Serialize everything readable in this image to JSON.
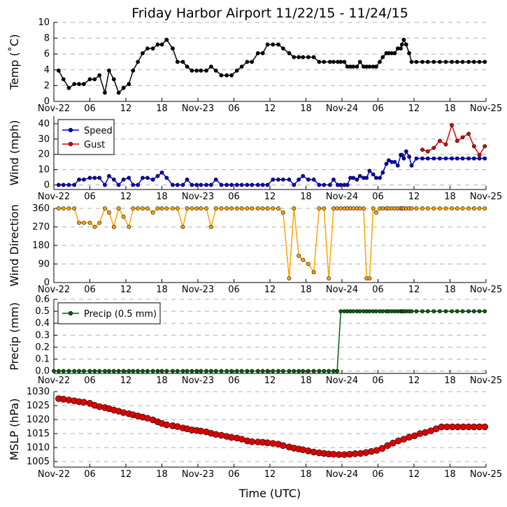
{
  "title": "Friday Harbor Airport 11/22/15 - 11/24/15",
  "xlabel": "Time (UTC)",
  "x_tick_labels": [
    "Nov-22",
    "06",
    "12",
    "18",
    "Nov-23",
    "06",
    "12",
    "18",
    "Nov-24",
    "06",
    "12",
    "18",
    "Nov-25"
  ],
  "x_tick_hours": [
    0,
    6,
    12,
    18,
    24,
    30,
    36,
    42,
    48,
    54,
    60,
    66,
    72
  ],
  "chart_data": [
    {
      "type": "line",
      "ylabel": "Temp ($^\\circ$C)",
      "ylabel_display": "Temp (˚C)",
      "ylim": [
        0,
        10
      ],
      "yticks": [
        0,
        2,
        4,
        6,
        8,
        10
      ],
      "grid": true,
      "series": [
        {
          "color": "#000000",
          "x_hours": [
            0.8,
            1.6,
            2.5,
            3.4,
            4.2,
            5,
            6,
            6.8,
            7.6,
            8.5,
            9.2,
            10,
            10.8,
            11.6,
            12.5,
            13.2,
            14,
            14.8,
            15.6,
            16.5,
            17.3,
            18,
            18.8,
            19.8,
            20.6,
            21.5,
            22.2,
            23,
            23.8,
            24.5,
            25.4,
            26.2,
            27,
            27.9,
            28.8,
            29.6,
            30.5,
            31.3,
            32.2,
            33,
            34,
            34.8,
            35.6,
            36.5,
            37.4,
            38.2,
            39.2,
            40,
            40.8,
            41.5,
            42.4,
            43.3,
            44.2,
            45,
            46,
            46.6,
            47.3,
            47.8,
            48.4,
            48.9,
            49.4,
            49.9,
            50.5,
            51,
            51.6,
            52.1,
            52.6,
            53.2,
            53.7,
            54.3,
            54.8,
            55.4,
            55.8,
            56.3,
            56.8,
            57.3,
            57.8,
            58,
            58.3,
            58.7,
            59.2,
            59.6,
            60.4,
            61.4,
            62.3,
            63.3,
            64.3,
            65.3,
            66.3,
            67.2,
            68.1,
            69.1,
            70,
            70.9,
            71.8
          ],
          "values": [
            3.9,
            2.8,
            1.7,
            2.2,
            2.2,
            2.2,
            2.8,
            2.8,
            3.3,
            1.1,
            3.9,
            2.8,
            1.1,
            1.7,
            2.2,
            3.9,
            5,
            6.1,
            6.7,
            6.7,
            7.2,
            7.2,
            7.8,
            6.7,
            5,
            5,
            4.4,
            3.9,
            3.9,
            3.9,
            3.9,
            4.4,
            3.9,
            3.3,
            3.3,
            3.3,
            3.9,
            4.4,
            5,
            5,
            6.1,
            6.1,
            7.2,
            7.2,
            7.2,
            6.7,
            6.1,
            5.6,
            5.6,
            5.6,
            5.6,
            5.6,
            5,
            5,
            5,
            5,
            5,
            5,
            5,
            4.4,
            4.4,
            4.4,
            4.4,
            5,
            4.4,
            4.4,
            4.4,
            4.4,
            4.4,
            5,
            5.6,
            6.1,
            6.1,
            6.1,
            6.1,
            6.7,
            6.7,
            7.2,
            7.8,
            7.2,
            6.1,
            5,
            5,
            5,
            5,
            5,
            5,
            5,
            5,
            5,
            5,
            5,
            5,
            5,
            5
          ]
        }
      ]
    },
    {
      "type": "line",
      "ylabel": "Wind (mph)",
      "ylim": [
        -3,
        45
      ],
      "yticks": [
        0,
        10,
        20,
        30,
        40
      ],
      "grid": true,
      "legend": "upper-left",
      "series": [
        {
          "name": "Speed",
          "color": "#0000cc",
          "x_hours": [
            0.8,
            1.6,
            2.5,
            3.4,
            4.2,
            5,
            6,
            6.8,
            7.6,
            8.5,
            9.2,
            10,
            10.8,
            11.6,
            12.5,
            13.2,
            14,
            14.8,
            15.6,
            16.5,
            17.3,
            18,
            18.8,
            19.8,
            20.6,
            21.5,
            22.2,
            23,
            23.8,
            24.5,
            25.4,
            26.2,
            27,
            27.9,
            28.8,
            29.6,
            30.5,
            31.3,
            32.2,
            33,
            34,
            34.8,
            35.6,
            36.5,
            37.4,
            38.2,
            39.2,
            40,
            40.8,
            41.5,
            42.4,
            43.3,
            44.2,
            45,
            46,
            46.6,
            47.3,
            47.8,
            48.4,
            48.9,
            49.4,
            49.9,
            50.5,
            51,
            51.6,
            52.1,
            52.6,
            53.2,
            53.7,
            54.3,
            54.8,
            55.4,
            55.8,
            56.3,
            56.8,
            57.3,
            57.8,
            58,
            58.3,
            58.7,
            59.2,
            59.6,
            60.4,
            61.4,
            62.3,
            63.3,
            64.3,
            65.3,
            66.3,
            67.2,
            68.1,
            69.1,
            70,
            70.9,
            71.8
          ],
          "values": [
            0,
            0,
            0,
            0,
            3.5,
            3.5,
            4.6,
            4.6,
            4.6,
            0,
            5.8,
            3.5,
            0,
            3.5,
            4.6,
            0,
            0,
            4.6,
            4.6,
            3.5,
            5.8,
            8.1,
            4.6,
            0,
            0,
            0,
            3.5,
            0,
            0,
            0,
            0,
            0,
            3.5,
            0,
            0,
            0,
            0,
            0,
            0,
            0,
            0,
            0,
            0,
            3.5,
            3.5,
            3.5,
            3.5,
            0,
            3.5,
            5.8,
            3.5,
            3.5,
            0,
            0,
            0,
            3.5,
            0,
            0,
            0,
            0,
            4.6,
            4.6,
            3.5,
            5.8,
            4.6,
            4.6,
            9.2,
            6.9,
            4.6,
            4.6,
            8.1,
            13.8,
            16.1,
            15,
            15,
            12.7,
            19.6,
            19.6,
            17.3,
            21.9,
            18.4,
            12.7,
            17.3,
            17.3,
            17.3,
            17.3,
            17.3,
            17.3,
            17.3,
            17.3,
            17.3,
            17.3,
            17.3,
            17.3,
            17.3
          ]
        },
        {
          "name": "Gust",
          "color": "#dd0000",
          "x_hours": [
            61.4,
            62.3,
            63.3,
            64.3,
            65.3,
            66.3,
            67.2,
            68.1,
            69.1,
            70,
            70.9,
            71.8
          ],
          "values": [
            23,
            21.9,
            24.2,
            28.8,
            26.5,
            39.1,
            28.8,
            31.1,
            33.4,
            25.3,
            19.6,
            25.3
          ]
        }
      ]
    },
    {
      "type": "line",
      "ylabel": "Wind Direction",
      "ylim": [
        0,
        360
      ],
      "yticks": [
        0,
        90,
        180,
        270,
        360
      ],
      "grid": true,
      "series": [
        {
          "color": "#ffa500",
          "x_hours": [
            0.8,
            1.6,
            2.5,
            3.4,
            4.2,
            5,
            6,
            6.8,
            7.6,
            8.5,
            9.2,
            10,
            10.8,
            11.6,
            12.5,
            13.2,
            14,
            14.8,
            15.6,
            16.5,
            17.3,
            18,
            18.8,
            19.8,
            20.6,
            21.5,
            22.2,
            23,
            23.8,
            24.5,
            25.4,
            26.2,
            27,
            27.9,
            28.8,
            29.6,
            30.5,
            31.3,
            32.2,
            33,
            34,
            34.8,
            35.6,
            36.5,
            37.4,
            38.2,
            39.2,
            40,
            40.8,
            41.5,
            42.4,
            43.3,
            44.2,
            45,
            45.8,
            46.6,
            47.2,
            47.8,
            48.4,
            48.9,
            49.4,
            49.9,
            50.5,
            51,
            51.6,
            52.1,
            52.6,
            53.2,
            53.7,
            54.3,
            54.8,
            55.4,
            55.8,
            56.3,
            56.8,
            57.3,
            57.8,
            58,
            58.3,
            58.7,
            59.2,
            59.6,
            60.4,
            61.4,
            62.3,
            63.3,
            64.3,
            65.3,
            66.3,
            67.2,
            68.1,
            69.1,
            70,
            70.9,
            71.8
          ],
          "values": [
            360,
            360,
            360,
            360,
            290,
            290,
            290,
            270,
            290,
            360,
            340,
            270,
            360,
            320,
            270,
            360,
            360,
            360,
            360,
            340,
            360,
            360,
            360,
            360,
            360,
            270,
            360,
            360,
            360,
            360,
            360,
            270,
            360,
            360,
            360,
            360,
            360,
            360,
            360,
            360,
            360,
            360,
            360,
            360,
            360,
            340,
            20,
            360,
            130,
            110,
            90,
            50,
            360,
            360,
            20,
            360,
            360,
            360,
            360,
            360,
            360,
            360,
            360,
            360,
            360,
            20,
            20,
            360,
            340,
            360,
            360,
            360,
            360,
            360,
            360,
            360,
            360,
            360,
            360,
            360,
            360,
            360,
            360,
            360,
            360,
            360,
            360,
            360,
            360,
            360,
            360,
            360,
            360,
            360,
            360
          ]
        }
      ]
    },
    {
      "type": "line",
      "ylabel": "Precip (mm)",
      "ylim": [
        -0.02,
        0.6
      ],
      "yticks": [
        0.0,
        0.1,
        0.2,
        0.3,
        0.4,
        0.5,
        0.6
      ],
      "ytick_labels": [
        "0.0",
        "0.1",
        "0.2",
        "0.3",
        "0.4",
        "0.5",
        "0.6"
      ],
      "grid": true,
      "legend": "upper-left",
      "series": [
        {
          "name": "Precip (0.5 mm)",
          "color": "#006400",
          "x_hours": [
            0,
            0.8,
            1.6,
            2.5,
            3.4,
            4.2,
            5,
            6,
            6.8,
            7.6,
            8.5,
            9.2,
            10,
            10.8,
            11.6,
            12.5,
            13.2,
            14,
            14.8,
            15.6,
            16.5,
            17.3,
            18,
            18.8,
            19.8,
            20.6,
            21.5,
            22.2,
            23,
            23.8,
            24.5,
            25.4,
            26.2,
            27,
            27.9,
            28.8,
            29.6,
            30.5,
            31.3,
            32.2,
            33,
            34,
            34.8,
            35.6,
            36.5,
            37.4,
            38.2,
            39.2,
            40,
            40.8,
            41.5,
            42.4,
            43.3,
            44.2,
            45,
            45.8,
            46.6,
            47.2,
            47.8,
            48.4,
            48.9,
            49.4,
            49.9,
            50.5,
            51,
            51.6,
            52.1,
            52.6,
            53.2,
            53.7,
            54.3,
            54.8,
            55.4,
            55.8,
            56.3,
            56.8,
            57.3,
            57.8,
            58,
            58.3,
            58.7,
            59.2,
            59.6,
            60.4,
            61.4,
            62.3,
            63.3,
            64.3,
            65.3,
            66.3,
            67.2,
            68.1,
            69.1,
            70,
            70.9,
            71.8
          ],
          "values": [
            0,
            0,
            0,
            0,
            0,
            0,
            0,
            0,
            0,
            0,
            0,
            0,
            0,
            0,
            0,
            0,
            0,
            0,
            0,
            0,
            0,
            0,
            0,
            0,
            0,
            0,
            0,
            0,
            0,
            0,
            0,
            0,
            0,
            0,
            0,
            0,
            0,
            0,
            0,
            0,
            0,
            0,
            0,
            0,
            0,
            0,
            0,
            0,
            0,
            0,
            0,
            0,
            0,
            0,
            0,
            0,
            0,
            0,
            0.5,
            0.5,
            0.5,
            0.5,
            0.5,
            0.5,
            0.5,
            0.5,
            0.5,
            0.5,
            0.5,
            0.5,
            0.5,
            0.5,
            0.5,
            0.5,
            0.5,
            0.5,
            0.5,
            0.5,
            0.5,
            0.5,
            0.5,
            0.5,
            0.5,
            0.5,
            0.5,
            0.5,
            0.5,
            0.5,
            0.5,
            0.5,
            0.5,
            0.5,
            0.5,
            0.5,
            0.5,
            0.5
          ]
        }
      ]
    },
    {
      "type": "line",
      "ylabel": "MSLP (hPa)",
      "ylim": [
        1003,
        1030
      ],
      "yticks": [
        1005,
        1010,
        1015,
        1020,
        1025,
        1030
      ],
      "grid": true,
      "series": [
        {
          "color": "#dd0000",
          "x_hours": [
            0.8,
            1.6,
            2.5,
            3.4,
            4.2,
            5,
            6,
            6.8,
            7.6,
            8.5,
            9.2,
            10,
            10.8,
            11.6,
            12.5,
            13.2,
            14,
            14.8,
            15.6,
            16.5,
            17.3,
            18,
            18.8,
            19.8,
            20.6,
            21.5,
            22.2,
            23,
            23.8,
            24.5,
            25.4,
            26.2,
            27,
            27.9,
            28.8,
            29.6,
            30.5,
            31.3,
            32.2,
            33,
            34,
            34.8,
            35.6,
            36.5,
            37.4,
            38.2,
            39.2,
            40,
            40.8,
            41.5,
            42.4,
            43.3,
            44.2,
            45,
            45.8,
            46.6,
            47.5,
            48.4,
            49.3,
            50.2,
            51.1,
            52,
            52.9,
            53.8,
            54.7,
            55.6,
            56.5,
            57.4,
            58.3,
            59.2,
            60.1,
            61,
            61.9,
            62.8,
            63.7,
            64.6,
            65.5,
            66.4,
            67.3,
            68.2,
            69.1,
            70,
            70.9,
            71.8
          ],
          "values": [
            1027.5,
            1027.3,
            1027,
            1026.7,
            1026.4,
            1026.2,
            1025.8,
            1025.1,
            1024.6,
            1024.3,
            1023.9,
            1023.4,
            1023,
            1022.5,
            1022.1,
            1021.7,
            1021.3,
            1020.9,
            1020.5,
            1019.9,
            1019.2,
            1018.6,
            1018.1,
            1017.8,
            1017.5,
            1017,
            1016.7,
            1016.3,
            1016.1,
            1015.9,
            1015.6,
            1015.1,
            1014.7,
            1014.4,
            1014,
            1013.6,
            1013.4,
            1013,
            1012.4,
            1012.1,
            1012,
            1011.9,
            1011.7,
            1011.5,
            1011.2,
            1010.7,
            1010.2,
            1009.8,
            1009.5,
            1009.2,
            1008.8,
            1008.4,
            1008.1,
            1007.9,
            1007.7,
            1007.6,
            1007.5,
            1007.5,
            1007.6,
            1007.8,
            1007.9,
            1008.2,
            1008.6,
            1009,
            1009.7,
            1010.7,
            1011.6,
            1012.4,
            1013,
            1013.7,
            1014.2,
            1015,
            1015.4,
            1016,
            1016.7,
            1017.4,
            1017.4,
            1017.4,
            1017.4,
            1017.4,
            1017.4,
            1017.4,
            1017.4,
            1017.4
          ]
        }
      ]
    }
  ]
}
